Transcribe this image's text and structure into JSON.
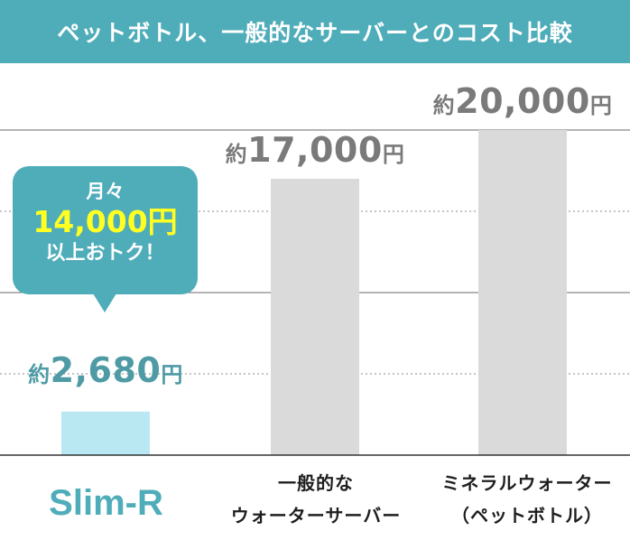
{
  "title": "ペットボトル、一般的なサーバーとのコスト比較",
  "colors": {
    "header_bg": "#4fadba",
    "highlight_bar": "#b9e8f3",
    "other_bar": "#dadada",
    "highlight_label": "#4f9ba5",
    "other_label": "#7a7a7a",
    "callout_bg": "#4fadba",
    "callout_amount": "#ffff22"
  },
  "callout": {
    "line1": "月々",
    "line2": "14,000円",
    "line3": "以上おトク！"
  },
  "chart_data": {
    "type": "bar",
    "title": "ペットボトル、一般的なサーバーとのコスト比較",
    "categories": [
      "Slim-R",
      "一般的なウォーターサーバー",
      "ミネラルウォーター（ペットボトル）"
    ],
    "category_lines": [
      [
        "Slim-R"
      ],
      [
        "一般的な",
        "ウォーターサーバー"
      ],
      [
        "ミネラルウォーター",
        "（ペットボトル）"
      ]
    ],
    "values": [
      2680,
      17000,
      20000
    ],
    "value_labels": [
      {
        "prefix": "約",
        "number": "2,680",
        "suffix": "円"
      },
      {
        "prefix": "約",
        "number": "17,000",
        "suffix": "円"
      },
      {
        "prefix": "約",
        "number": "20,000",
        "suffix": "円"
      }
    ],
    "ylim": [
      0,
      23000
    ],
    "gridlines": [
      5000,
      10000,
      15000,
      20000
    ],
    "xlabel": "",
    "ylabel": ""
  }
}
